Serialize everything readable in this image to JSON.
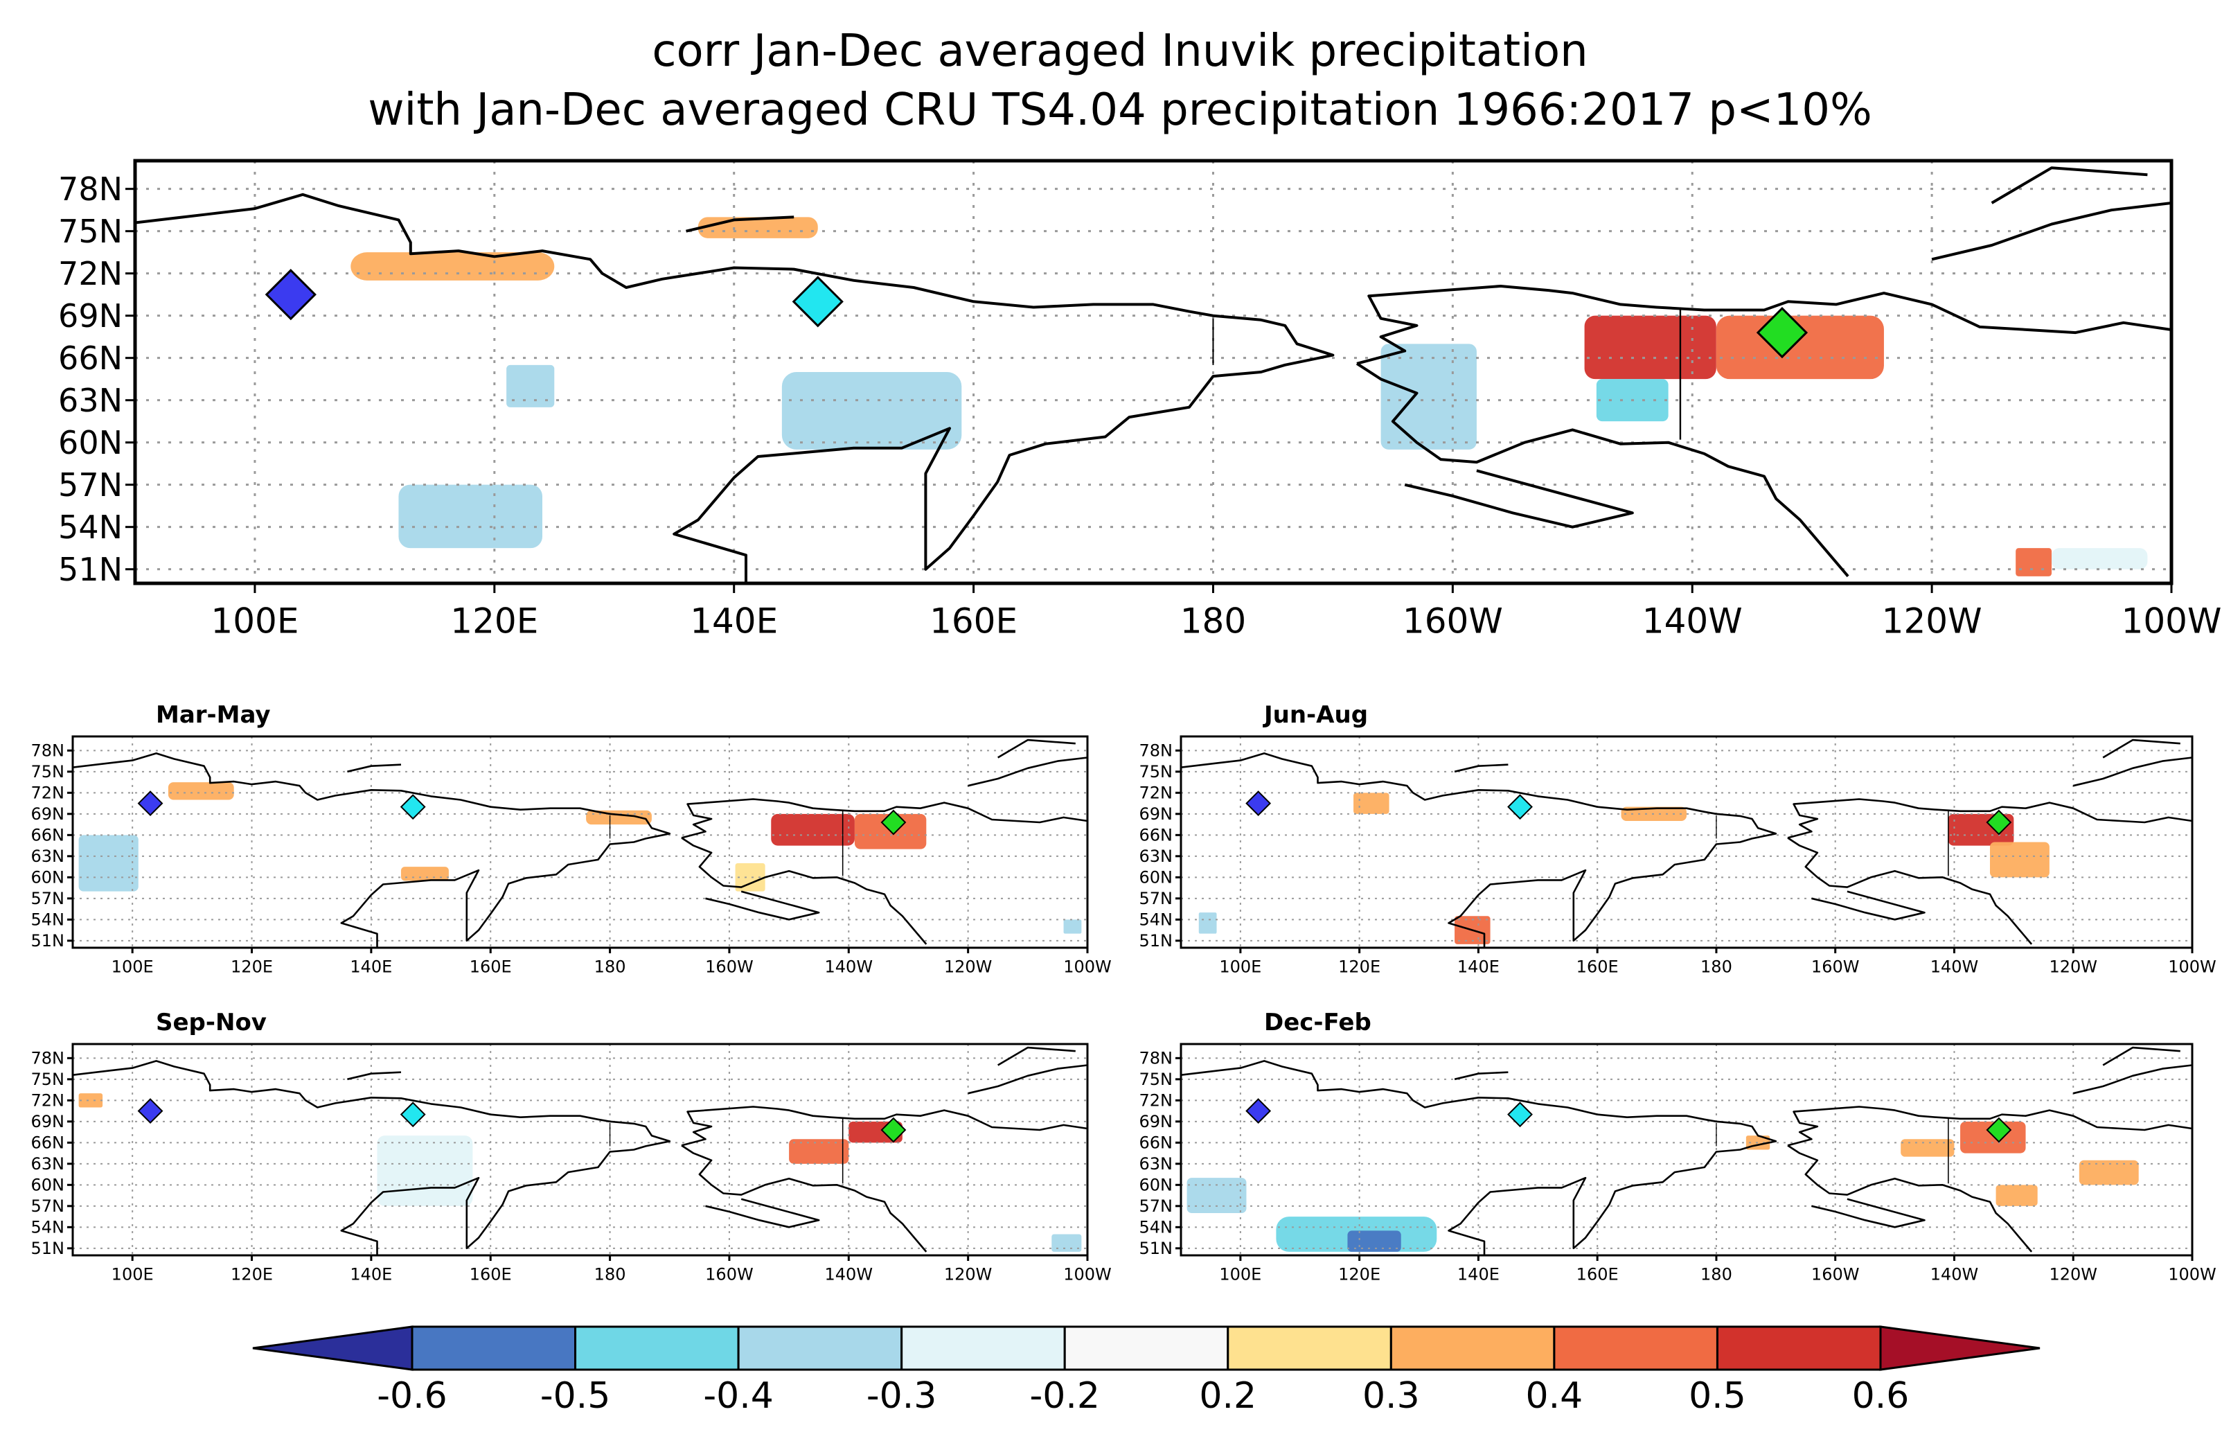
{
  "title": {
    "line1": "corr Jan-Dec averaged Inuvik precipitation",
    "line2": "with Jan-Dec averaged CRU TS4.04 precipitation 1966:2017 p<10%"
  },
  "axes": {
    "lat_labels": [
      "78N",
      "75N",
      "72N",
      "69N",
      "66N",
      "63N",
      "60N",
      "57N",
      "54N",
      "51N"
    ],
    "lat_values": [
      78,
      75,
      72,
      69,
      66,
      63,
      60,
      57,
      54,
      51
    ],
    "lon_labels": [
      "100E",
      "120E",
      "140E",
      "160E",
      "180",
      "160W",
      "140W",
      "120W",
      "100W"
    ],
    "lon_values": [
      100,
      120,
      140,
      160,
      180,
      200,
      220,
      240,
      260
    ],
    "lon_range": [
      90,
      260
    ],
    "lat_range": [
      50,
      80
    ]
  },
  "markers": [
    {
      "name": "blue",
      "lon": 103,
      "lat": 70.5,
      "color": "#3b3bf0"
    },
    {
      "name": "cyan",
      "lon": 147,
      "lat": 70,
      "color": "#22e6f0"
    },
    {
      "name": "green",
      "lon": 227.5,
      "lat": 67.8,
      "color": "#22dd22"
    }
  ],
  "panels": [
    {
      "id": "annual",
      "title": "",
      "blobs": [
        {
          "lon": [
            108,
            125
          ],
          "lat": [
            71.5,
            73.5
          ],
          "v": 0.32
        },
        {
          "lon": [
            137,
            147
          ],
          "lat": [
            74.5,
            76
          ],
          "v": 0.32
        },
        {
          "lon": [
            211,
            222
          ],
          "lat": [
            64.5,
            69
          ],
          "v": 0.55
        },
        {
          "lon": [
            222,
            236
          ],
          "lat": [
            64.5,
            69
          ],
          "v": 0.45
        },
        {
          "lon": [
            212,
            218
          ],
          "lat": [
            61.5,
            64.5
          ],
          "v": -0.45
        },
        {
          "lon": [
            194,
            202
          ],
          "lat": [
            59.5,
            67
          ],
          "v": -0.35
        },
        {
          "lon": [
            112,
            124
          ],
          "lat": [
            52.5,
            57
          ],
          "v": -0.33
        },
        {
          "lon": [
            144,
            159
          ],
          "lat": [
            59.5,
            65
          ],
          "v": -0.33
        },
        {
          "lon": [
            121,
            125
          ],
          "lat": [
            62.5,
            65.5
          ],
          "v": -0.33
        },
        {
          "lon": [
            247,
            250
          ],
          "lat": [
            50.5,
            52.5
          ],
          "v": 0.42
        },
        {
          "lon": [
            250,
            258
          ],
          "lat": [
            51,
            52.5
          ],
          "v": -0.25
        }
      ]
    },
    {
      "id": "mam",
      "title": "Mar-May",
      "blobs": [
        {
          "lon": [
            91,
            101
          ],
          "lat": [
            58,
            66
          ],
          "v": -0.32
        },
        {
          "lon": [
            106,
            117
          ],
          "lat": [
            71,
            73.5
          ],
          "v": 0.32
        },
        {
          "lon": [
            207,
            221
          ],
          "lat": [
            64.5,
            69
          ],
          "v": 0.55
        },
        {
          "lon": [
            221,
            233
          ],
          "lat": [
            64,
            69
          ],
          "v": 0.45
        },
        {
          "lon": [
            201,
            206
          ],
          "lat": [
            58,
            62
          ],
          "v": 0.25
        },
        {
          "lon": [
            145,
            153
          ],
          "lat": [
            59.5,
            61.5
          ],
          "v": 0.32
        },
        {
          "lon": [
            176,
            187
          ],
          "lat": [
            67.5,
            69.5
          ],
          "v": 0.32
        },
        {
          "lon": [
            256,
            259
          ],
          "lat": [
            52,
            54
          ],
          "v": -0.32
        }
      ]
    },
    {
      "id": "jja",
      "title": "Jun-Aug",
      "blobs": [
        {
          "lon": [
            219,
            230
          ],
          "lat": [
            64.5,
            69
          ],
          "v": 0.55
        },
        {
          "lon": [
            226,
            236
          ],
          "lat": [
            60,
            65
          ],
          "v": 0.32
        },
        {
          "lon": [
            136,
            142
          ],
          "lat": [
            50.5,
            54.5
          ],
          "v": 0.45
        },
        {
          "lon": [
            119,
            125
          ],
          "lat": [
            69,
            72
          ],
          "v": 0.32
        },
        {
          "lon": [
            164,
            175
          ],
          "lat": [
            68,
            70
          ],
          "v": 0.32
        },
        {
          "lon": [
            93,
            96
          ],
          "lat": [
            52,
            55
          ],
          "v": -0.32
        }
      ]
    },
    {
      "id": "son",
      "title": "Sep-Nov",
      "blobs": [
        {
          "lon": [
            141,
            157
          ],
          "lat": [
            57,
            67
          ],
          "v": -0.25
        },
        {
          "lon": [
            210,
            220
          ],
          "lat": [
            63,
            66.5
          ],
          "v": 0.45
        },
        {
          "lon": [
            220,
            229
          ],
          "lat": [
            66,
            69
          ],
          "v": 0.55
        },
        {
          "lon": [
            91,
            95
          ],
          "lat": [
            71,
            73
          ],
          "v": 0.32
        },
        {
          "lon": [
            254,
            259
          ],
          "lat": [
            50.5,
            53
          ],
          "v": -0.32
        }
      ]
    },
    {
      "id": "djf",
      "title": "Dec-Feb",
      "blobs": [
        {
          "lon": [
            91,
            101
          ],
          "lat": [
            56,
            61
          ],
          "v": -0.32
        },
        {
          "lon": [
            106,
            133
          ],
          "lat": [
            50.5,
            55.5
          ],
          "v": -0.4
        },
        {
          "lon": [
            118,
            127
          ],
          "lat": [
            50.5,
            53.5
          ],
          "v": -0.55
        },
        {
          "lon": [
            211,
            220
          ],
          "lat": [
            64,
            66.5
          ],
          "v": 0.32
        },
        {
          "lon": [
            221,
            232
          ],
          "lat": [
            64.5,
            69
          ],
          "v": 0.45
        },
        {
          "lon": [
            241,
            251
          ],
          "lat": [
            60,
            63.5
          ],
          "v": 0.32
        },
        {
          "lon": [
            227,
            234
          ],
          "lat": [
            57,
            60
          ],
          "v": 0.32
        },
        {
          "lon": [
            185,
            189
          ],
          "lat": [
            65,
            67
          ],
          "v": 0.32
        }
      ]
    }
  ],
  "colorbar": {
    "labels": [
      "-0.6",
      "-0.5",
      "-0.4",
      "-0.3",
      "-0.2",
      "0.2",
      "0.3",
      "0.4",
      "0.5",
      "0.6"
    ],
    "colors": [
      "#2b2f9a",
      "#4877c2",
      "#6fd7e6",
      "#a8d8ea",
      "#e3f4f8",
      "#f8f8f8",
      "#fee18f",
      "#fdae5f",
      "#f06b43",
      "#d2322c",
      "#a50f27"
    ]
  }
}
